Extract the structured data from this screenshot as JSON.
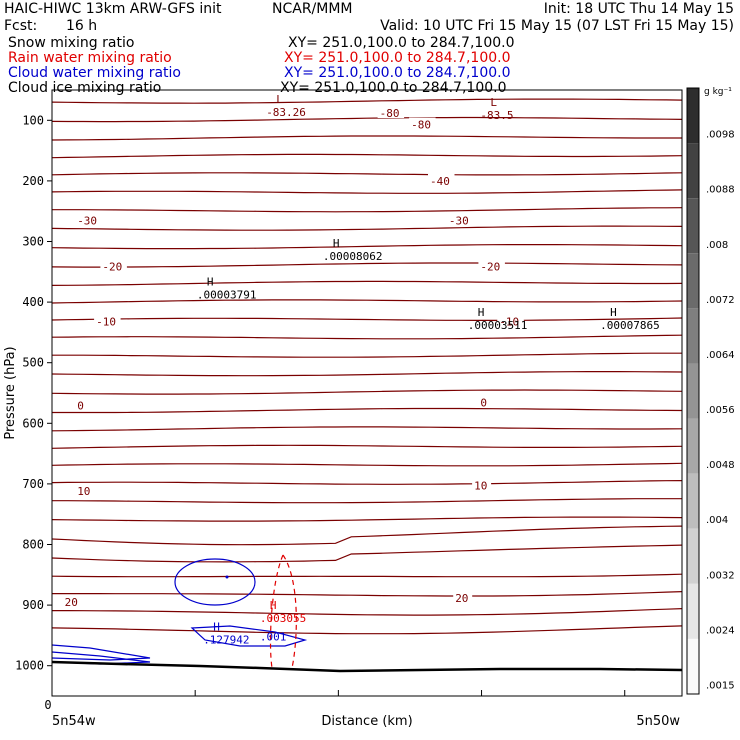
{
  "header": {
    "model": "HAIC-HIWC 13km ARW-GFS init",
    "org": "NCAR/MMM",
    "init": "Init: 18 UTC Thu 14 May 15",
    "fcst_label": "Fcst:",
    "fcst_value": "16 h",
    "valid": "Valid: 10 UTC Fri 15 May 15 (07 LST Fri 15 May 15)"
  },
  "fields": [
    {
      "name": "Snow mixing ratio",
      "xy": "XY= 251.0,100.0 to 284.7,100.0",
      "color": "#000000"
    },
    {
      "name": "Rain water mixing ratio",
      "xy": "XY= 251.0,100.0 to 284.7,100.0",
      "color": "#e00000"
    },
    {
      "name": "Cloud water mixing ratio",
      "xy": "XY= 251.0,100.0 to 284.7,100.0",
      "color": "#0000cc"
    },
    {
      "name": "Cloud ice mixing ratio",
      "xy": "XY= 251.0,100.0 to 284.7,100.0",
      "color": "#000000"
    }
  ],
  "colors": {
    "temperature": "#7a0000",
    "rain": "#e00000",
    "cloud_water": "#0000cc",
    "ground": "#000000"
  },
  "chart_data": {
    "type": "line",
    "ylabel": "Pressure (hPa)",
    "xlabel": "Distance (km)",
    "x_start_label": "5n54w",
    "x_end_label": "5n50w",
    "x_zero_label": "0",
    "ylim": [
      1050,
      50
    ],
    "yticks": [
      100,
      200,
      300,
      400,
      500,
      600,
      700,
      800,
      900,
      1000
    ],
    "temperature_labels": [
      {
        "text": "-80",
        "x": 0.52,
        "p": 88
      },
      {
        "text": "-80",
        "x": 0.57,
        "p": 107
      },
      {
        "text": "-40",
        "x": 0.6,
        "p": 200
      },
      {
        "text": "-30",
        "x": 0.04,
        "p": 265
      },
      {
        "text": "-30",
        "x": 0.63,
        "p": 265
      },
      {
        "text": "-20",
        "x": 0.08,
        "p": 341
      },
      {
        "text": "-20",
        "x": 0.68,
        "p": 341
      },
      {
        "text": "-10",
        "x": 0.07,
        "p": 432
      },
      {
        "text": "-10",
        "x": 0.71,
        "p": 432
      },
      {
        "text": "0",
        "x": 0.04,
        "p": 571
      },
      {
        "text": "0",
        "x": 0.68,
        "p": 566
      },
      {
        "text": "10",
        "x": 0.04,
        "p": 712
      },
      {
        "text": "10",
        "x": 0.67,
        "p": 703
      },
      {
        "text": "20",
        "x": 0.02,
        "p": 895
      },
      {
        "text": "20",
        "x": 0.64,
        "p": 888
      }
    ],
    "extrema": [
      {
        "kind": "L",
        "value": "-83.26",
        "x": 0.34,
        "p": 85,
        "color": "temperature"
      },
      {
        "kind": "L",
        "value": "-83.5",
        "x": 0.68,
        "p": 90,
        "color": "temperature"
      },
      {
        "kind": "H",
        "value": ".00008062",
        "x": 0.43,
        "p": 322,
        "color": "ground"
      },
      {
        "kind": "H",
        "value": ".00003791",
        "x": 0.23,
        "p": 386,
        "color": "ground"
      },
      {
        "kind": "H",
        "value": ".00003511",
        "x": 0.66,
        "p": 436,
        "color": "ground"
      },
      {
        "kind": "H",
        "value": ".00007865",
        "x": 0.87,
        "p": 436,
        "color": "ground"
      },
      {
        "kind": "H",
        "value": ".003055",
        "x": 0.33,
        "p": 920,
        "color": "rain"
      },
      {
        "kind": "H",
        "value": ".127942",
        "x": 0.24,
        "p": 955,
        "color": "cloud_water"
      },
      {
        "kind": "",
        "value": ".001",
        "x": 0.33,
        "p": 950,
        "color": "cloud_water"
      }
    ],
    "colorbar": {
      "unit": "g kg⁻¹",
      "labels": [
        ".0098",
        ".0088",
        ".008",
        ".0072",
        ".0064",
        ".0056",
        ".0048",
        ".004",
        ".0032",
        ".0024",
        ".0015"
      ]
    }
  }
}
